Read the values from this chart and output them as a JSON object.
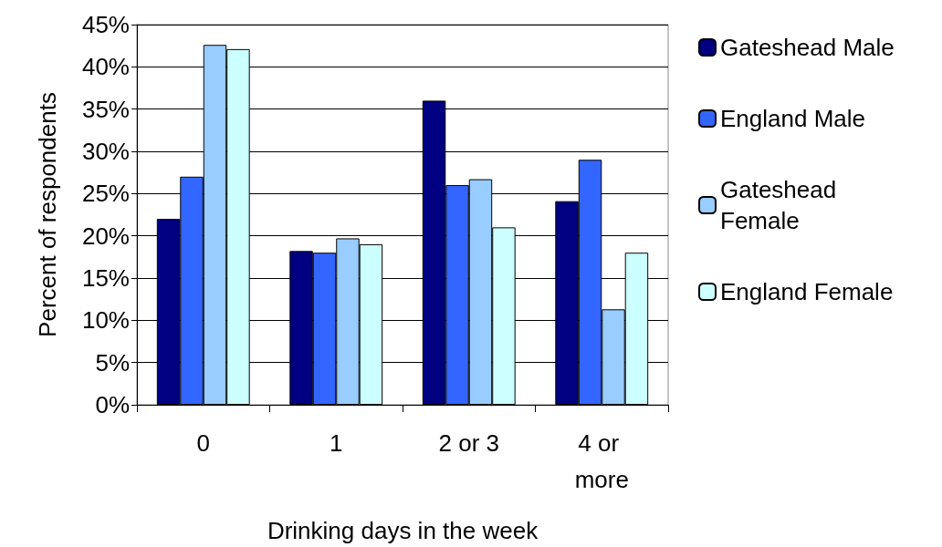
{
  "chart_data": {
    "type": "bar",
    "xlabel": "Drinking days in the week",
    "ylabel": "Percent of respondents",
    "categories": [
      "0",
      "1",
      "2 or 3",
      "4 or more"
    ],
    "series": [
      {
        "name": "Gateshead Male",
        "color": "#000080",
        "values": [
          22,
          18.2,
          36,
          24.1
        ]
      },
      {
        "name": "England Male",
        "color": "#3366ff",
        "values": [
          27,
          18,
          26,
          29
        ]
      },
      {
        "name": "Gateshead Female",
        "color": "#99ccff",
        "values": [
          42.6,
          19.7,
          26.7,
          11.3
        ]
      },
      {
        "name": "England Female",
        "color": "#ccffff",
        "values": [
          42.1,
          19,
          21,
          18
        ]
      }
    ],
    "ylim": [
      0,
      45
    ],
    "yticks": [
      {
        "value": 0,
        "label": "0%"
      },
      {
        "value": 5,
        "label": "5%"
      },
      {
        "value": 10,
        "label": "10%"
      },
      {
        "value": 15,
        "label": "15%"
      },
      {
        "value": 20,
        "label": "20%"
      },
      {
        "value": 25,
        "label": "25%"
      },
      {
        "value": 30,
        "label": "30%"
      },
      {
        "value": 35,
        "label": "35%"
      },
      {
        "value": 40,
        "label": "40%"
      },
      {
        "value": 45,
        "label": "45%"
      }
    ],
    "grid": "y",
    "legend": "right"
  }
}
